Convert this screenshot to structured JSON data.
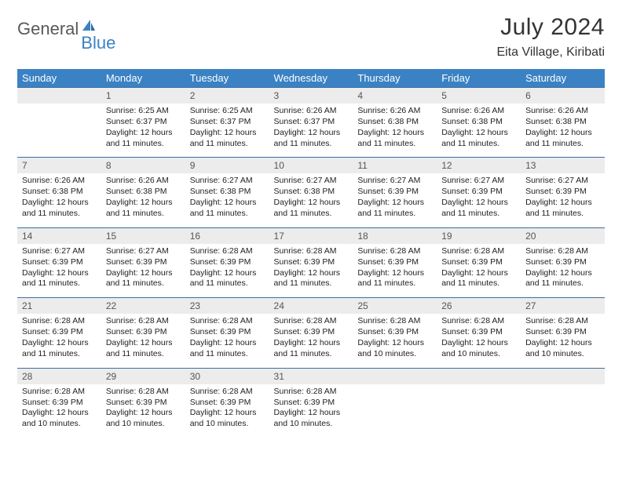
{
  "logo": {
    "part1": "General",
    "part2": "Blue"
  },
  "title": "July 2024",
  "location": "Eita Village, Kiribati",
  "colors": {
    "header_bg": "#3b82c4",
    "header_text": "#ffffff",
    "daynum_bg": "#ececec",
    "daynum_text": "#555555",
    "row_border": "#3b6fa0",
    "body_text": "#222222",
    "logo_grey": "#595959",
    "logo_blue": "#3b82c4"
  },
  "weekdays": [
    "Sunday",
    "Monday",
    "Tuesday",
    "Wednesday",
    "Thursday",
    "Friday",
    "Saturday"
  ],
  "weeks": [
    {
      "nums": [
        "",
        "1",
        "2",
        "3",
        "4",
        "5",
        "6"
      ],
      "cells": [
        null,
        {
          "sunrise": "Sunrise: 6:25 AM",
          "sunset": "Sunset: 6:37 PM",
          "day1": "Daylight: 12 hours",
          "day2": "and 11 minutes."
        },
        {
          "sunrise": "Sunrise: 6:25 AM",
          "sunset": "Sunset: 6:37 PM",
          "day1": "Daylight: 12 hours",
          "day2": "and 11 minutes."
        },
        {
          "sunrise": "Sunrise: 6:26 AM",
          "sunset": "Sunset: 6:37 PM",
          "day1": "Daylight: 12 hours",
          "day2": "and 11 minutes."
        },
        {
          "sunrise": "Sunrise: 6:26 AM",
          "sunset": "Sunset: 6:38 PM",
          "day1": "Daylight: 12 hours",
          "day2": "and 11 minutes."
        },
        {
          "sunrise": "Sunrise: 6:26 AM",
          "sunset": "Sunset: 6:38 PM",
          "day1": "Daylight: 12 hours",
          "day2": "and 11 minutes."
        },
        {
          "sunrise": "Sunrise: 6:26 AM",
          "sunset": "Sunset: 6:38 PM",
          "day1": "Daylight: 12 hours",
          "day2": "and 11 minutes."
        }
      ]
    },
    {
      "nums": [
        "7",
        "8",
        "9",
        "10",
        "11",
        "12",
        "13"
      ],
      "cells": [
        {
          "sunrise": "Sunrise: 6:26 AM",
          "sunset": "Sunset: 6:38 PM",
          "day1": "Daylight: 12 hours",
          "day2": "and 11 minutes."
        },
        {
          "sunrise": "Sunrise: 6:26 AM",
          "sunset": "Sunset: 6:38 PM",
          "day1": "Daylight: 12 hours",
          "day2": "and 11 minutes."
        },
        {
          "sunrise": "Sunrise: 6:27 AM",
          "sunset": "Sunset: 6:38 PM",
          "day1": "Daylight: 12 hours",
          "day2": "and 11 minutes."
        },
        {
          "sunrise": "Sunrise: 6:27 AM",
          "sunset": "Sunset: 6:38 PM",
          "day1": "Daylight: 12 hours",
          "day2": "and 11 minutes."
        },
        {
          "sunrise": "Sunrise: 6:27 AM",
          "sunset": "Sunset: 6:39 PM",
          "day1": "Daylight: 12 hours",
          "day2": "and 11 minutes."
        },
        {
          "sunrise": "Sunrise: 6:27 AM",
          "sunset": "Sunset: 6:39 PM",
          "day1": "Daylight: 12 hours",
          "day2": "and 11 minutes."
        },
        {
          "sunrise": "Sunrise: 6:27 AM",
          "sunset": "Sunset: 6:39 PM",
          "day1": "Daylight: 12 hours",
          "day2": "and 11 minutes."
        }
      ]
    },
    {
      "nums": [
        "14",
        "15",
        "16",
        "17",
        "18",
        "19",
        "20"
      ],
      "cells": [
        {
          "sunrise": "Sunrise: 6:27 AM",
          "sunset": "Sunset: 6:39 PM",
          "day1": "Daylight: 12 hours",
          "day2": "and 11 minutes."
        },
        {
          "sunrise": "Sunrise: 6:27 AM",
          "sunset": "Sunset: 6:39 PM",
          "day1": "Daylight: 12 hours",
          "day2": "and 11 minutes."
        },
        {
          "sunrise": "Sunrise: 6:28 AM",
          "sunset": "Sunset: 6:39 PM",
          "day1": "Daylight: 12 hours",
          "day2": "and 11 minutes."
        },
        {
          "sunrise": "Sunrise: 6:28 AM",
          "sunset": "Sunset: 6:39 PM",
          "day1": "Daylight: 12 hours",
          "day2": "and 11 minutes."
        },
        {
          "sunrise": "Sunrise: 6:28 AM",
          "sunset": "Sunset: 6:39 PM",
          "day1": "Daylight: 12 hours",
          "day2": "and 11 minutes."
        },
        {
          "sunrise": "Sunrise: 6:28 AM",
          "sunset": "Sunset: 6:39 PM",
          "day1": "Daylight: 12 hours",
          "day2": "and 11 minutes."
        },
        {
          "sunrise": "Sunrise: 6:28 AM",
          "sunset": "Sunset: 6:39 PM",
          "day1": "Daylight: 12 hours",
          "day2": "and 11 minutes."
        }
      ]
    },
    {
      "nums": [
        "21",
        "22",
        "23",
        "24",
        "25",
        "26",
        "27"
      ],
      "cells": [
        {
          "sunrise": "Sunrise: 6:28 AM",
          "sunset": "Sunset: 6:39 PM",
          "day1": "Daylight: 12 hours",
          "day2": "and 11 minutes."
        },
        {
          "sunrise": "Sunrise: 6:28 AM",
          "sunset": "Sunset: 6:39 PM",
          "day1": "Daylight: 12 hours",
          "day2": "and 11 minutes."
        },
        {
          "sunrise": "Sunrise: 6:28 AM",
          "sunset": "Sunset: 6:39 PM",
          "day1": "Daylight: 12 hours",
          "day2": "and 11 minutes."
        },
        {
          "sunrise": "Sunrise: 6:28 AM",
          "sunset": "Sunset: 6:39 PM",
          "day1": "Daylight: 12 hours",
          "day2": "and 11 minutes."
        },
        {
          "sunrise": "Sunrise: 6:28 AM",
          "sunset": "Sunset: 6:39 PM",
          "day1": "Daylight: 12 hours",
          "day2": "and 10 minutes."
        },
        {
          "sunrise": "Sunrise: 6:28 AM",
          "sunset": "Sunset: 6:39 PM",
          "day1": "Daylight: 12 hours",
          "day2": "and 10 minutes."
        },
        {
          "sunrise": "Sunrise: 6:28 AM",
          "sunset": "Sunset: 6:39 PM",
          "day1": "Daylight: 12 hours",
          "day2": "and 10 minutes."
        }
      ]
    },
    {
      "nums": [
        "28",
        "29",
        "30",
        "31",
        "",
        "",
        ""
      ],
      "cells": [
        {
          "sunrise": "Sunrise: 6:28 AM",
          "sunset": "Sunset: 6:39 PM",
          "day1": "Daylight: 12 hours",
          "day2": "and 10 minutes."
        },
        {
          "sunrise": "Sunrise: 6:28 AM",
          "sunset": "Sunset: 6:39 PM",
          "day1": "Daylight: 12 hours",
          "day2": "and 10 minutes."
        },
        {
          "sunrise": "Sunrise: 6:28 AM",
          "sunset": "Sunset: 6:39 PM",
          "day1": "Daylight: 12 hours",
          "day2": "and 10 minutes."
        },
        {
          "sunrise": "Sunrise: 6:28 AM",
          "sunset": "Sunset: 6:39 PM",
          "day1": "Daylight: 12 hours",
          "day2": "and 10 minutes."
        },
        null,
        null,
        null
      ]
    }
  ]
}
